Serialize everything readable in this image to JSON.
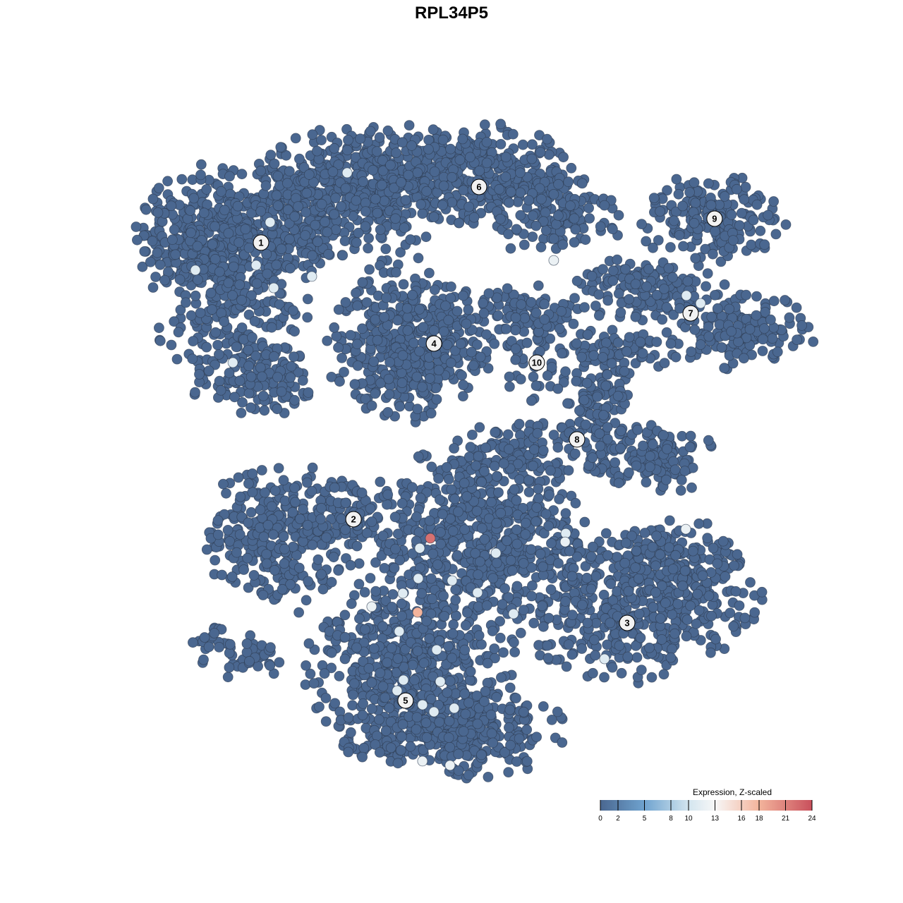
{
  "chart_data": {
    "type": "scatter",
    "title": "RPL34P5",
    "xlabel": "",
    "ylabel": "",
    "xlim": [
      -15,
      15
    ],
    "ylim": [
      -15,
      15
    ],
    "grid": false,
    "axes_visible": false,
    "point_color_default_value": 0,
    "cluster_blobs": [
      {
        "cluster": "1",
        "cx": -10.33,
        "cy": 10.33,
        "sx": 2.0,
        "sy": 1.67,
        "n": 350
      },
      {
        "cluster": "1",
        "cx": -10.33,
        "cy": 6.67,
        "sx": 1.67,
        "sy": 2.33,
        "n": 250
      },
      {
        "cluster": "1",
        "cx": -12.33,
        "cy": 10.0,
        "sx": 1.33,
        "sy": 1.33,
        "n": 100
      },
      {
        "cluster": "1",
        "cx": -9.33,
        "cy": 3.33,
        "sx": 1.33,
        "sy": 0.83,
        "n": 100
      },
      {
        "cluster": "1",
        "cx": -6.67,
        "cy": 11.67,
        "sx": 2.0,
        "sy": 1.33,
        "n": 200
      },
      {
        "cluster": "6",
        "cx": -3.33,
        "cy": 13.0,
        "sx": 2.67,
        "sy": 1.17,
        "n": 400
      },
      {
        "cluster": "6",
        "cx": 1.33,
        "cy": 13.0,
        "sx": 2.33,
        "sy": 1.17,
        "n": 300
      },
      {
        "cluster": "6",
        "cx": 5.0,
        "cy": 11.33,
        "sx": 1.67,
        "sy": 1.0,
        "n": 150
      },
      {
        "cluster": "6",
        "cx": -4.67,
        "cy": 10.33,
        "sx": 2.0,
        "sy": 1.0,
        "n": 100
      },
      {
        "cluster": "4",
        "cx": -2.0,
        "cy": 5.0,
        "sx": 1.83,
        "sy": 1.67,
        "n": 450
      },
      {
        "cluster": "10",
        "cx": 4.0,
        "cy": 5.0,
        "sx": 1.0,
        "sy": 1.33,
        "n": 80
      },
      {
        "cluster": "10",
        "cx": 3.0,
        "cy": 6.67,
        "sx": 1.67,
        "sy": 0.5,
        "n": 60
      },
      {
        "cluster": "9",
        "cx": 12.33,
        "cy": 11.0,
        "sx": 1.67,
        "sy": 1.0,
        "n": 200
      },
      {
        "cluster": "7",
        "cx": 9.33,
        "cy": 7.67,
        "sx": 1.67,
        "sy": 0.83,
        "n": 150
      },
      {
        "cluster": "7",
        "cx": 13.67,
        "cy": 5.67,
        "sx": 1.67,
        "sy": 0.83,
        "n": 150
      },
      {
        "cluster": "8",
        "cx": 7.0,
        "cy": 2.67,
        "sx": 0.83,
        "sy": 1.67,
        "n": 120
      },
      {
        "cluster": "8",
        "cx": 9.33,
        "cy": -0.33,
        "sx": 1.5,
        "sy": 0.83,
        "n": 150
      },
      {
        "cluster": "8",
        "cx": 3.33,
        "cy": 0.0,
        "sx": 1.67,
        "sy": 0.67,
        "n": 100
      },
      {
        "cluster": "8",
        "cx": 8.0,
        "cy": 4.67,
        "sx": 1.33,
        "sy": 0.5,
        "n": 60
      },
      {
        "cluster": "2",
        "cx": -8.0,
        "cy": -4.0,
        "sx": 1.83,
        "sy": 1.67,
        "n": 300
      },
      {
        "cluster": "2",
        "cx": -5.33,
        "cy": -2.67,
        "sx": 1.33,
        "sy": 0.67,
        "n": 80
      },
      {
        "cluster": "2",
        "cx": -9.67,
        "cy": -9.67,
        "sx": 1.0,
        "sy": 0.5,
        "n": 40
      },
      {
        "cluster": "2",
        "cx": -11.33,
        "cy": -8.83,
        "sx": 0.5,
        "sy": 0.33,
        "n": 15
      },
      {
        "cluster": "5",
        "cx": 1.33,
        "cy": -4.0,
        "sx": 2.67,
        "sy": 2.0,
        "n": 600
      },
      {
        "cluster": "3",
        "cx": 8.33,
        "cy": -7.33,
        "sx": 3.0,
        "sy": 1.67,
        "n": 450
      },
      {
        "cluster": "3",
        "cx": 10.67,
        "cy": -5.33,
        "sx": 1.67,
        "sy": 1.0,
        "n": 150
      },
      {
        "cluster": "5",
        "cx": -2.0,
        "cy": -10.0,
        "sx": 2.33,
        "sy": 2.0,
        "n": 500
      },
      {
        "cluster": "5",
        "cx": 0.0,
        "cy": -13.33,
        "sx": 2.67,
        "sy": 1.0,
        "n": 350
      }
    ],
    "highlighted_points": [
      {
        "x": -4.93,
        "y": 13.17,
        "value": 11
      },
      {
        "x": -8.57,
        "y": 10.83,
        "value": 11
      },
      {
        "x": -9.23,
        "y": 8.8,
        "value": 11
      },
      {
        "x": -12.1,
        "y": 8.57,
        "value": 11
      },
      {
        "x": -6.6,
        "y": 8.27,
        "value": 11
      },
      {
        "x": -8.4,
        "y": 7.73,
        "value": 11
      },
      {
        "x": -10.33,
        "y": 4.2,
        "value": 11
      },
      {
        "x": 4.83,
        "y": 9.03,
        "value": 12
      },
      {
        "x": 11.1,
        "y": 7.37,
        "value": 11
      },
      {
        "x": 11.77,
        "y": 7.0,
        "value": 11
      },
      {
        "x": 5.4,
        "y": -3.87,
        "value": 11
      },
      {
        "x": 11.07,
        "y": -3.67,
        "value": 12
      },
      {
        "x": 5.37,
        "y": -4.27,
        "value": 12
      },
      {
        "x": -1.5,
        "y": -4.57,
        "value": 11
      },
      {
        "x": 2.1,
        "y": -4.8,
        "value": 11
      },
      {
        "x": -1.57,
        "y": -6.0,
        "value": 11
      },
      {
        "x": 0.03,
        "y": -6.1,
        "value": 11
      },
      {
        "x": 1.23,
        "y": -6.67,
        "value": 11
      },
      {
        "x": -3.77,
        "y": -7.33,
        "value": 12
      },
      {
        "x": -2.3,
        "y": -6.7,
        "value": 11
      },
      {
        "x": 2.93,
        "y": -7.67,
        "value": 11
      },
      {
        "x": -2.47,
        "y": -8.5,
        "value": 11
      },
      {
        "x": -0.7,
        "y": -9.37,
        "value": 11
      },
      {
        "x": 7.23,
        "y": -9.8,
        "value": 11
      },
      {
        "x": -2.27,
        "y": -10.8,
        "value": 11
      },
      {
        "x": -0.53,
        "y": -10.87,
        "value": 11
      },
      {
        "x": -2.57,
        "y": -11.3,
        "value": 11
      },
      {
        "x": -1.37,
        "y": -11.97,
        "value": 11
      },
      {
        "x": -0.83,
        "y": -12.3,
        "value": 11
      },
      {
        "x": 0.13,
        "y": -12.13,
        "value": 11
      },
      {
        "x": -1.37,
        "y": -14.63,
        "value": 12
      },
      {
        "x": -0.07,
        "y": -14.83,
        "value": 12
      },
      {
        "x": -1.6,
        "y": -7.6,
        "value": 18
      },
      {
        "x": -1.0,
        "y": -4.1,
        "value": 22
      }
    ],
    "cluster_labels": [
      {
        "text": "1",
        "x": -9.0,
        "y": 9.87
      },
      {
        "text": "6",
        "x": 1.3,
        "y": 12.5
      },
      {
        "text": "4",
        "x": -0.83,
        "y": 5.1
      },
      {
        "text": "10",
        "x": 4.03,
        "y": 4.2
      },
      {
        "text": "9",
        "x": 12.43,
        "y": 11.0
      },
      {
        "text": "7",
        "x": 11.3,
        "y": 6.53
      },
      {
        "text": "8",
        "x": 5.93,
        "y": 0.57
      },
      {
        "text": "2",
        "x": -4.63,
        "y": -3.2
      },
      {
        "text": "3",
        "x": 8.3,
        "y": -8.1
      },
      {
        "text": "5",
        "x": -2.17,
        "y": -11.77
      }
    ],
    "legend": {
      "title": "Expression, Z-scaled",
      "placement": "bottom-right",
      "range": [
        0,
        24
      ],
      "ticks": [
        "0",
        "2",
        "5",
        "8",
        "10",
        "13",
        "16",
        "18",
        "21",
        "24"
      ],
      "colors": [
        {
          "value": 0,
          "color": "#4a6790"
        },
        {
          "value": 5,
          "color": "#6fa3cf"
        },
        {
          "value": 10,
          "color": "#d3e5ef"
        },
        {
          "value": 13,
          "color": "#f7f7f7"
        },
        {
          "value": 18,
          "color": "#f3b49c"
        },
        {
          "value": 24,
          "color": "#c9505c"
        }
      ]
    }
  }
}
